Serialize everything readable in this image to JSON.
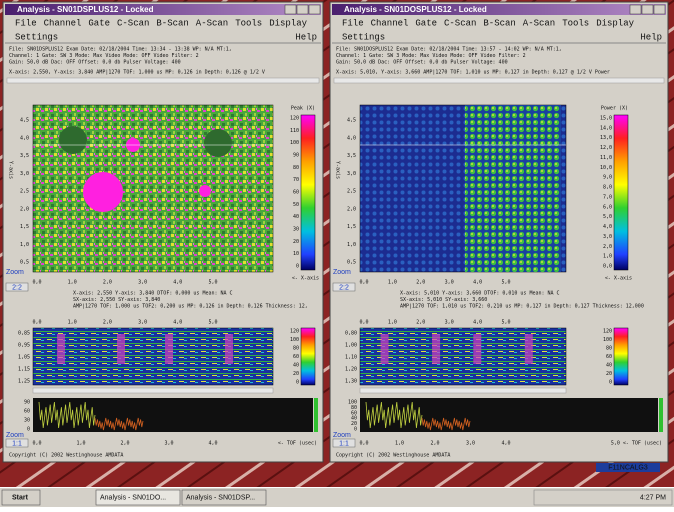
{
  "windows": [
    {
      "title": "Analysis - SN01DSPLUS12 - Locked",
      "menu": [
        "File",
        "Channel",
        "Gate",
        "C-Scan",
        "B-Scan",
        "A-Scan",
        "Tools",
        "Display"
      ],
      "settings": "Settings",
      "help": "Help",
      "info": [
        "File: SN01DSPLUS12   Exam Date: 02/18/2004   Time: 13:34 - 13:38  WP: N/A  MT:1,",
        "Channel: 1  Gate: SW 3  Mode: Max  Video Mode: OFF  Video Filter: 2",
        "Gain: 50,0 dB  Dac: OFF  Offset: 0,0 db  Pulser Voltage: 400"
      ],
      "cursor": "X-axis:    2,550, Y-axis:    3,840 AMP|1270 TOF: 1,000 us MP: 0,126 in Depth: 0,126 @ 1/2 V",
      "cscan": {
        "yticks": [
          "4,5",
          "4,0",
          "3,5",
          "3,0",
          "2,5",
          "2,0",
          "1,5",
          "1,0",
          "0,5"
        ],
        "ylabel": "Y-axis",
        "xticks": [
          "0,0",
          "1,0",
          "2,0",
          "3,0",
          "4,0",
          "5,0"
        ],
        "xlabel": "<- X-axis",
        "cb_label": "Peak  (X)",
        "cb_ticks": [
          "120",
          "110",
          "100",
          "90",
          "80",
          "70",
          "60",
          "50",
          "40",
          "30",
          "20",
          "10",
          "0"
        ]
      },
      "zoom": "Zoom",
      "zoom_ratio": "2:2",
      "stats": [
        "X-axis:    2,550   Y-axis:    3,840   DTOF: 0,000 us  Mean: NA C",
        "SX-axis:   2,550   SY-axis:   3,840",
        "AMP|1270 TOF: 1,000 us TOF2: 0,200 us  MP: 0,126 in  Depth: 0,126 Thickness: 12,"
      ],
      "bscan": {
        "xticks": [
          "0,0",
          "1,0",
          "2,0",
          "3,0",
          "4,0",
          "5,0"
        ],
        "yticks": [
          "0,85",
          "0,95",
          "1,05",
          "1,15",
          "1,25"
        ],
        "cb_ticks": [
          "120",
          "100",
          "80",
          "60",
          "40",
          "20",
          "0"
        ]
      },
      "ascan": {
        "yticks": [
          "90",
          "60",
          "30",
          "0"
        ],
        "xticks": [
          "0,0",
          "1,0",
          "2,0",
          "3,0",
          "4,0"
        ],
        "xlabel": "<- TOF (usec)"
      },
      "zoom2": "Zoom",
      "zoom2_ratio": "1:1",
      "copyright": "Copyright (C) 2002 Westinghouse AMDATA"
    },
    {
      "title": "Analysis - SN01DOSPLUS12 - Locked",
      "menu": [
        "File",
        "Channel",
        "Gate",
        "C-Scan",
        "B-Scan",
        "A-Scan",
        "Tools",
        "Display"
      ],
      "settings": "Settings",
      "help": "Help",
      "info": [
        "File: SN01DOSPLUS12   Exam Date: 02/18/2004   Time: 13:57 - 14:02  WP: N/A  MT:1,",
        "Channel: 1  Gate: SW 3  Mode: Max  Video Mode: OFF  Video Filter: 2",
        "Gain: 50,0 dB  Dac: OFF  Offset: 0,0 db  Pulser Voltage: 400"
      ],
      "cursor": "X-axis:    5,010, Y-axis:    3,660 AMP|1270 TOF: 1,010 us MP: 0,127 in Depth: 0,127 @ 1/2 V Power",
      "cscan": {
        "yticks": [
          "4,5",
          "4,0",
          "3,5",
          "3,0",
          "2,5",
          "2,0",
          "1,5",
          "1,0",
          "0,5"
        ],
        "ylabel": "Y-axis",
        "xticks": [
          "0,0",
          "1,0",
          "2,0",
          "3,0",
          "4,0",
          "5,0"
        ],
        "xlabel": "<- X-axis",
        "cb_label": "Power  (X)",
        "cb_ticks": [
          "15,0",
          "14,0",
          "13,0",
          "12,0",
          "11,0",
          "10,0",
          "9,0",
          "8,0",
          "7,0",
          "6,0",
          "5,0",
          "4,0",
          "3,0",
          "2,0",
          "1,0",
          "0,0"
        ]
      },
      "zoom": "Zoom",
      "zoom_ratio": "2:2",
      "stats": [
        "X-axis:    5,010   Y-axis:    3,660   DTOF: 0,010 us  Mean: NA C",
        "SX-axis:   5,010   SY-axis:   3,660",
        "AMP|1270 TOF: 1,010 us TOF2: 0,210 us  MP: 0,127 in  Depth: 0,127 Thickness: 12,000"
      ],
      "bscan": {
        "xticks": [
          "0,0",
          "1,0",
          "2,0",
          "3,0",
          "4,0",
          "5,0"
        ],
        "yticks": [
          "0,80",
          "1,00",
          "1,10",
          "1,20",
          "1,30"
        ],
        "cb_ticks": [
          "120",
          "100",
          "80",
          "60",
          "40",
          "20",
          "0"
        ]
      },
      "ascan": {
        "yticks": [
          "100",
          "80",
          "60",
          "40",
          "20",
          "0"
        ],
        "xticks": [
          "0,0",
          "1,0",
          "2,0",
          "3,0",
          "4,0"
        ],
        "xlabel": "5,0 <- TOF (usec)"
      },
      "zoom2": "Zoom",
      "zoom2_ratio": "1:1",
      "copyright": "Copyright (C) 2002 Westinghouse AMDATA"
    }
  ],
  "desktop_icon": "F11NCALG3",
  "taskbar": {
    "start": "Start",
    "buttons": [
      "Analysis - SN01DO...",
      "Analysis - SN01DSP..."
    ],
    "clock": "4:27 PM"
  }
}
